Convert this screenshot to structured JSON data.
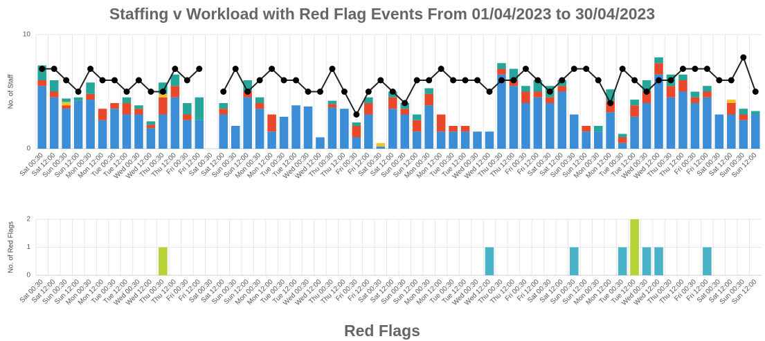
{
  "chart_data": [
    {
      "type": "bar",
      "title": "Staffing v Workload with Red Flag Events From 01/04/2023 to 30/04/2023",
      "y_label": "No. of Staff",
      "categories": [
        "Sat 00:30",
        "Sat 12:00",
        "Sun 00:30",
        "Sun 12:00",
        "Mon 00:30",
        "Mon 12:00",
        "Tue 00:30",
        "Tue 12:00",
        "Wed 00:30",
        "Wed 12:00",
        "Thu 00:30",
        "Thu 12:00",
        "Fri 00:30",
        "Fri 12:00",
        "Sat 00:30",
        "Sat 12:00",
        "Sun 00:30",
        "Sun 12:00",
        "Mon 00:30",
        "Mon 12:00",
        "Tue 00:30",
        "Tue 12:00",
        "Wed 00:30",
        "Wed 12:00",
        "Thu 00:30",
        "Thu 12:00",
        "Fri 00:30",
        "Fri 12:00",
        "Sat 00:30",
        "Sat 12:00",
        "Sun 00:30",
        "Sun 12:00",
        "Mon 00:30",
        "Mon 12:00",
        "Tue 00:30",
        "Tue 12:00",
        "Wed 00:30",
        "Wed 12:00",
        "Thu 00:30",
        "Thu 12:00",
        "Fri 00:30",
        "Fri 12:00",
        "Sat 00:30",
        "Sat 12:00",
        "Sun 00:30",
        "Sun 12:00",
        "Mon 00:30",
        "Mon 12:00",
        "Tue 00:30",
        "Tue 12:00",
        "Wed 00:30",
        "Wed 12:00",
        "Thu 00:30",
        "Thu 12:00",
        "Fri 00:30",
        "Fri 12:00",
        "Sat 00:30",
        "Sat 12:00",
        "Sun 00:30",
        "Sun 12:00"
      ],
      "ylim": [
        0,
        10
      ],
      "yticks": [
        0,
        10
      ],
      "grid": true,
      "series": [
        {
          "color": "#3b8ed6",
          "values": [
            5.5,
            4.5,
            3.5,
            4.2,
            4.3,
            2.5,
            3.5,
            3,
            3,
            1.8,
            3,
            4.5,
            2.5,
            2.5,
            0,
            3,
            2,
            4.5,
            3.5,
            1.5,
            2.8,
            3.8,
            3.7,
            1,
            3.6,
            3.5,
            1,
            3,
            0.2,
            3.5,
            3,
            1.5,
            3.8,
            1.5,
            1.5,
            1.5,
            1.5,
            1.5,
            6.5,
            5.5,
            4,
            4.5,
            4,
            5,
            3,
            1.5,
            1.5,
            3.2,
            0.5,
            2.8,
            4,
            6.5,
            4.5,
            5,
            4,
            4.5,
            3,
            3,
            2.5,
            3
          ]
        },
        {
          "color": "#e8492a",
          "values": [
            0.5,
            0.5,
            0.3,
            0,
            0.5,
            1,
            0.5,
            1,
            0.5,
            0.3,
            1.5,
            1,
            0.5,
            0,
            0,
            0.5,
            0,
            0.5,
            0.5,
            1.5,
            0,
            0,
            0,
            0,
            0.3,
            0,
            1,
            1,
            0,
            1,
            0.5,
            1,
            1,
            1.5,
            0.5,
            0.5,
            0,
            0,
            0.5,
            0.5,
            1,
            0.5,
            0.5,
            0.5,
            0,
            0.5,
            0,
            1,
            0.5,
            1,
            1,
            1,
            1,
            1,
            0.5,
            0.5,
            0,
            1,
            0.5,
            0
          ]
        },
        {
          "color": "#f2c12e",
          "values": [
            0,
            0,
            0.3,
            0,
            0,
            0,
            0,
            0,
            0,
            0,
            0.3,
            0,
            0,
            0,
            0,
            0,
            0,
            0,
            0,
            0,
            0,
            0,
            0,
            0,
            0,
            0,
            0,
            0,
            0.3,
            0,
            0,
            0,
            0,
            0,
            0,
            0,
            0,
            0,
            0,
            0,
            0,
            0,
            0,
            0,
            0,
            0,
            0,
            0,
            0,
            0,
            0,
            0,
            0,
            0,
            0,
            0,
            0,
            0.3,
            0,
            0
          ]
        },
        {
          "color": "#26a69a",
          "values": [
            1.3,
            1,
            0.3,
            0.3,
            1,
            0,
            0,
            0.5,
            0.3,
            0.3,
            1,
            1,
            1,
            2,
            0,
            0.5,
            0,
            1,
            0.5,
            0,
            0,
            0,
            0,
            0,
            0.3,
            0,
            0.3,
            0.5,
            0,
            0.5,
            0.5,
            0.5,
            0.5,
            0,
            0,
            0,
            0,
            0,
            0.5,
            1,
            0.5,
            1,
            1,
            0.5,
            0,
            0,
            0.5,
            1,
            0.3,
            0.5,
            1,
            0.5,
            1,
            0.5,
            0.5,
            0.5,
            0,
            0,
            0.5,
            0.3
          ]
        },
        {
          "type": "line",
          "color": "#222",
          "values": [
            7,
            7,
            6,
            5,
            7,
            6,
            6,
            5,
            6,
            5,
            5,
            7,
            6,
            7,
            null,
            5,
            7,
            5,
            6,
            7,
            6,
            6,
            5,
            5,
            7,
            5,
            3,
            5,
            6,
            5,
            4,
            6,
            6,
            7,
            6,
            6,
            6,
            5,
            6,
            6,
            7,
            6,
            5,
            6,
            7,
            7,
            6,
            4,
            7,
            6,
            5,
            6,
            6,
            7,
            7,
            7,
            6,
            6,
            8,
            5
          ]
        }
      ]
    },
    {
      "type": "bar",
      "title": "Red Flags",
      "y_label": "No. of Red Flags",
      "categories": [
        "Sat 00:30",
        "Sat 12:00",
        "Sun 00:30",
        "Sun 12:00",
        "Mon 00:30",
        "Mon 12:00",
        "Tue 00:30",
        "Tue 12:00",
        "Wed 00:30",
        "Wed 12:00",
        "Thu 00:30",
        "Thu 12:00",
        "Fri 00:30",
        "Fri 12:00",
        "Sat 00:30",
        "Sat 12:00",
        "Sun 00:30",
        "Sun 12:00",
        "Mon 00:30",
        "Mon 12:00",
        "Tue 00:30",
        "Tue 12:00",
        "Wed 00:30",
        "Wed 12:00",
        "Thu 00:30",
        "Thu 12:00",
        "Fri 00:30",
        "Fri 12:00",
        "Sat 00:30",
        "Sat 12:00",
        "Sun 00:30",
        "Sun 12:00",
        "Mon 00:30",
        "Mon 12:00",
        "Tue 00:30",
        "Tue 12:00",
        "Wed 00:30",
        "Wed 12:00",
        "Thu 00:30",
        "Thu 12:00",
        "Fri 00:30",
        "Fri 12:00",
        "Sat 00:30",
        "Sat 12:00",
        "Sun 00:30",
        "Sun 12:00",
        "Mon 00:30",
        "Mon 12:00",
        "Tue 00:30",
        "Tue 12:00",
        "Wed 00:30",
        "Wed 12:00",
        "Thu 00:30",
        "Thu 12:00",
        "Fri 00:30",
        "Fri 12:00",
        "Sat 00:30",
        "Sat 12:00",
        "Sun 00:30",
        "Sun 12:00"
      ],
      "ylim": [
        0,
        2
      ],
      "yticks": [
        0,
        1,
        2
      ],
      "grid": true,
      "series": [
        {
          "color": "#4ab3c8",
          "values": [
            0,
            0,
            0,
            0,
            0,
            0,
            0,
            0,
            0,
            0,
            0,
            0,
            0,
            0,
            0,
            0,
            0,
            0,
            0,
            0,
            0,
            0,
            0,
            0,
            0,
            0,
            0,
            0,
            0,
            0,
            0,
            0,
            0,
            0,
            0,
            0,
            0,
            1,
            0,
            0,
            0,
            0,
            0,
            0,
            1,
            0,
            0,
            0,
            1,
            0,
            1,
            1,
            0,
            0,
            0,
            1,
            0,
            0,
            0,
            0
          ]
        },
        {
          "color": "#b5d334",
          "values": [
            0,
            0,
            0,
            0,
            0,
            0,
            0,
            0,
            0,
            0,
            1,
            0,
            0,
            0,
            0,
            0,
            0,
            0,
            0,
            0,
            0,
            0,
            0,
            0,
            0,
            0,
            0,
            0,
            0,
            0,
            0,
            0,
            0,
            0,
            0,
            0,
            0,
            0,
            0,
            0,
            0,
            0,
            0,
            0,
            0,
            0,
            0,
            0,
            0,
            2,
            0,
            0,
            0,
            0,
            0,
            0,
            0,
            0,
            0,
            0
          ]
        }
      ]
    }
  ]
}
